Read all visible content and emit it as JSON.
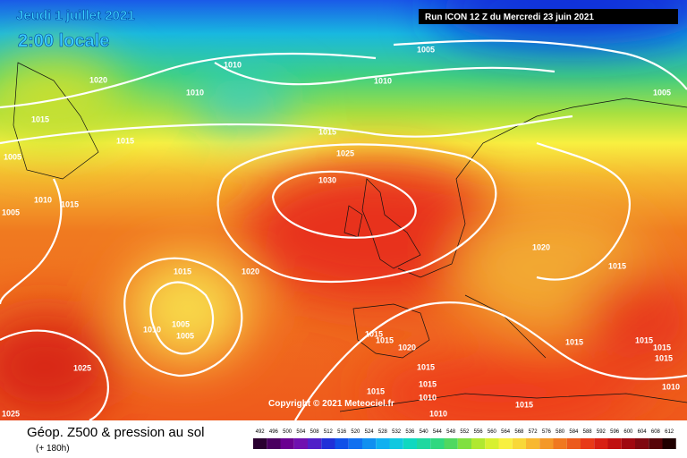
{
  "header": {
    "date": "Jeudi 1 juillet 2021",
    "time": "2:00 locale"
  },
  "run": "Run ICON 12 Z du Mercredi 23 juin 2021",
  "copyright": "Copyright © 2021 Meteociel.fr",
  "caption": {
    "title": "Géop. Z500 & pression au sol",
    "subtitle": "(+ 180h)"
  },
  "isobar_labels": [
    "1020",
    "1010",
    "1010",
    "1005",
    "1010",
    "1005",
    "1015",
    "1015",
    "1015",
    "1025",
    "1005",
    "1030",
    "1010",
    "1015",
    "1005",
    "1015",
    "1020",
    "1020",
    "1015",
    "1010",
    "1005",
    "1005",
    "1015",
    "1015",
    "1020",
    "1015",
    "1015",
    "1015",
    "1025",
    "1015",
    "1015",
    "1015",
    "1010",
    "1010",
    "1015",
    "1025",
    "1010",
    "1015"
  ],
  "scale": {
    "labels": [
      "492",
      "496",
      "500",
      "504",
      "508",
      "512",
      "516",
      "520",
      "524",
      "528",
      "532",
      "536",
      "540",
      "544",
      "548",
      "552",
      "556",
      "560",
      "564",
      "568",
      "572",
      "576",
      "580",
      "584",
      "588",
      "592",
      "596",
      "600",
      "604",
      "608",
      "612"
    ]
  }
}
